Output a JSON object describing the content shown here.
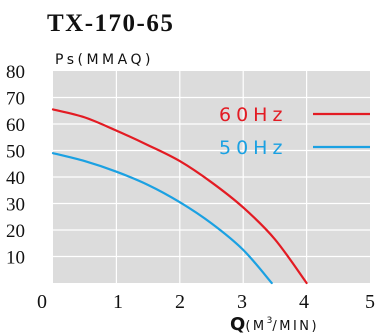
{
  "chart_data": {
    "type": "line",
    "title": "TX-170-65",
    "ylabel": "Ps(MMAQ)",
    "xlabel_main": "Q",
    "xlabel_unit_left": "(M",
    "xlabel_unit_sup": "3",
    "xlabel_unit_right": "/MIN)",
    "xlim": [
      0,
      5
    ],
    "ylim": [
      0,
      80
    ],
    "x_ticks": [
      "0",
      "1",
      "2",
      "3",
      "4",
      "5"
    ],
    "y_ticks": [
      "10",
      "20",
      "30",
      "40",
      "50",
      "60",
      "70",
      "80"
    ],
    "grid": true,
    "legend_position": "right",
    "series": [
      {
        "name": "60Hz",
        "color": "#e31b23",
        "x": [
          0,
          0.5,
          1.0,
          1.5,
          2.0,
          2.5,
          3.0,
          3.5,
          4.0
        ],
        "y": [
          65.5,
          62.5,
          57.5,
          52.0,
          46.0,
          38.0,
          28.5,
          16.5,
          0
        ]
      },
      {
        "name": "50Hz",
        "color": "#1ba1e2",
        "x": [
          0,
          0.5,
          1.0,
          1.5,
          2.0,
          2.5,
          3.0,
          3.45
        ],
        "y": [
          49.0,
          46.0,
          42.0,
          37.0,
          30.5,
          22.5,
          12.5,
          0
        ]
      }
    ]
  }
}
